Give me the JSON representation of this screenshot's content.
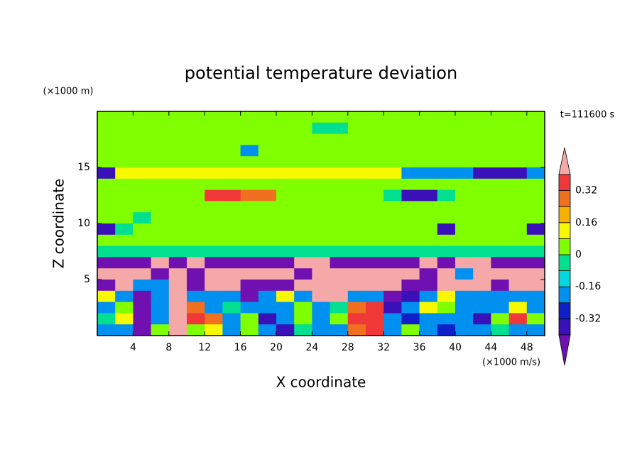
{
  "chart_data": {
    "type": "contour",
    "title": "potential temperature deviation",
    "xlabel": "X coordinate",
    "ylabel": "Z coordinate",
    "x_unit": "(×1000 m/s)",
    "y_unit": "(×1000 m)",
    "time_label": "t=111600 s",
    "xlim": [
      0,
      50
    ],
    "ylim": [
      0,
      20
    ],
    "xticks": [
      4,
      8,
      12,
      16,
      20,
      24,
      28,
      32,
      36,
      40,
      44,
      48
    ],
    "yticks": [
      5,
      10,
      15
    ],
    "levels": [
      -0.4,
      -0.32,
      -0.24,
      -0.16,
      -0.08,
      0,
      0.08,
      0.16,
      0.24,
      0.32,
      0.4
    ],
    "colors": [
      "#7010b0",
      "#3a10b8",
      "#1020c8",
      "#0090f0",
      "#00d8e0",
      "#00e090",
      "#80ff00",
      "#f8f800",
      "#f8b000",
      "#f07020",
      "#f03838",
      "#f4a8a8"
    ],
    "colorbar_ticks": [
      -0.32,
      -0.16,
      0,
      0.16,
      0.32
    ],
    "x": [
      1,
      3,
      5,
      7,
      9,
      11,
      13,
      15,
      17,
      19,
      21,
      23,
      25,
      27,
      29,
      31,
      33,
      35,
      37,
      39,
      41,
      43,
      45,
      47,
      49
    ],
    "y": [
      19.5,
      18.5,
      17.5,
      16.5,
      15.5,
      14.5,
      13.5,
      12.5,
      11.5,
      10.5,
      9.5,
      8.5,
      7.5,
      6.5,
      5.5,
      4.5,
      3.5,
      2.5,
      1.5,
      0.5
    ],
    "z": [
      [
        0.04,
        0.04,
        0.04,
        0.04,
        0.04,
        0.04,
        0.04,
        0.04,
        0.04,
        0.04,
        0.04,
        0.04,
        0.04,
        0.04,
        0.04,
        0.04,
        0.04,
        0.04,
        0.04,
        0.04,
        0.04,
        0.04,
        0.04,
        0.04,
        0.04
      ],
      [
        0.04,
        0.04,
        0.04,
        0.04,
        0.04,
        0.04,
        0.04,
        0.04,
        0.04,
        0.04,
        0.04,
        0.04,
        -0.04,
        -0.04,
        0.04,
        0.04,
        0.04,
        0.04,
        0.04,
        0.04,
        0.04,
        0.04,
        0.04,
        0.04,
        0.04
      ],
      [
        0.04,
        0.04,
        0.04,
        0.04,
        0.04,
        0.04,
        0.04,
        0.04,
        0.04,
        0.04,
        0.04,
        0.04,
        0.04,
        0.04,
        0.04,
        0.04,
        0.04,
        0.04,
        0.04,
        0.04,
        0.04,
        0.04,
        0.04,
        0.04,
        0.04
      ],
      [
        0.04,
        0.04,
        0.04,
        0.04,
        0.04,
        0.04,
        0.04,
        0.04,
        -0.2,
        0.04,
        0.04,
        0.04,
        0.04,
        0.04,
        0.04,
        0.04,
        0.04,
        0.04,
        0.04,
        0.04,
        0.04,
        0.04,
        0.04,
        0.04,
        0.04
      ],
      [
        0.04,
        0.04,
        0.04,
        0.04,
        0.04,
        0.04,
        0.04,
        0.04,
        0.04,
        0.04,
        0.04,
        0.04,
        0.04,
        0.04,
        0.04,
        0.04,
        0.04,
        0.04,
        0.04,
        0.04,
        0.04,
        0.04,
        0.04,
        0.04,
        0.04
      ],
      [
        -0.36,
        0.12,
        0.12,
        0.12,
        0.12,
        0.12,
        0.12,
        0.12,
        0.12,
        0.12,
        0.12,
        0.12,
        0.12,
        0.12,
        0.12,
        0.12,
        0.12,
        -0.2,
        -0.2,
        -0.2,
        -0.2,
        -0.36,
        -0.36,
        -0.36,
        -0.2
      ],
      [
        0.04,
        0.04,
        0.04,
        0.04,
        0.04,
        0.04,
        0.04,
        0.04,
        0.04,
        0.04,
        0.04,
        0.04,
        0.04,
        0.04,
        0.04,
        0.04,
        0.04,
        0.04,
        0.04,
        0.04,
        0.04,
        0.04,
        0.04,
        0.04,
        0.04
      ],
      [
        0.04,
        0.04,
        0.04,
        0.04,
        0.04,
        0.04,
        0.36,
        0.36,
        0.28,
        0.28,
        0.04,
        0.04,
        0.04,
        0.04,
        0.04,
        0.04,
        -0.04,
        -0.36,
        -0.36,
        -0.04,
        0.04,
        0.04,
        0.04,
        0.04,
        0.04
      ],
      [
        0.04,
        0.04,
        0.04,
        0.04,
        0.04,
        0.04,
        0.04,
        0.04,
        0.04,
        0.04,
        0.04,
        0.04,
        0.04,
        0.04,
        0.04,
        0.04,
        0.04,
        0.04,
        0.04,
        0.04,
        0.04,
        0.04,
        0.04,
        0.04,
        0.04
      ],
      [
        0.04,
        0.04,
        -0.04,
        0.04,
        0.04,
        0.04,
        0.04,
        0.04,
        0.04,
        0.04,
        0.04,
        0.04,
        0.04,
        0.04,
        0.04,
        0.04,
        0.04,
        0.04,
        0.04,
        0.04,
        0.04,
        0.04,
        0.04,
        0.04,
        0.04
      ],
      [
        -0.36,
        -0.04,
        0.04,
        0.04,
        0.04,
        0.04,
        0.04,
        0.04,
        0.04,
        0.04,
        0.04,
        0.04,
        0.04,
        0.04,
        0.04,
        0.04,
        0.04,
        0.04,
        0.04,
        -0.36,
        0.04,
        0.04,
        0.04,
        0.04,
        -0.36
      ],
      [
        0.04,
        0.04,
        0.04,
        0.04,
        0.04,
        0.04,
        0.04,
        0.04,
        0.04,
        0.04,
        0.04,
        0.04,
        0.04,
        0.04,
        0.04,
        0.04,
        0.04,
        0.04,
        0.04,
        0.04,
        0.04,
        0.04,
        0.04,
        0.04,
        0.04
      ],
      [
        -0.04,
        -0.04,
        -0.04,
        -0.04,
        -0.04,
        -0.04,
        -0.04,
        -0.04,
        -0.04,
        -0.04,
        -0.04,
        -0.04,
        -0.04,
        -0.04,
        -0.04,
        -0.04,
        -0.04,
        -0.04,
        -0.04,
        -0.04,
        -0.04,
        -0.04,
        -0.04,
        -0.04,
        -0.04
      ],
      [
        -0.5,
        -0.5,
        -0.5,
        0.5,
        -0.5,
        0.5,
        -0.5,
        -0.5,
        -0.5,
        -0.5,
        -0.5,
        0.5,
        0.5,
        -0.5,
        -0.5,
        -0.5,
        -0.5,
        -0.5,
        0.5,
        -0.5,
        0.5,
        0.5,
        -0.5,
        -0.5,
        -0.5
      ],
      [
        0.5,
        0.5,
        0.5,
        -0.5,
        0.5,
        -0.5,
        0.5,
        0.5,
        0.5,
        0.5,
        0.5,
        -0.5,
        0.5,
        0.5,
        0.5,
        0.5,
        0.5,
        0.5,
        -0.5,
        0.5,
        -0.2,
        0.5,
        0.5,
        0.5,
        0.5
      ],
      [
        -0.5,
        0.5,
        -0.2,
        -0.2,
        0.5,
        -0.5,
        0.5,
        0.5,
        -0.5,
        -0.5,
        -0.5,
        0.5,
        0.5,
        0.5,
        0.5,
        0.5,
        0.5,
        -0.5,
        -0.5,
        0.5,
        0.5,
        0.5,
        -0.5,
        0.5,
        0.5
      ],
      [
        0.12,
        -0.2,
        -0.5,
        -0.2,
        0.5,
        -0.2,
        -0.2,
        -0.2,
        -0.5,
        -0.2,
        0.12,
        -0.2,
        0.5,
        0.5,
        -0.2,
        -0.2,
        -0.5,
        -0.36,
        -0.2,
        0.12,
        -0.2,
        -0.2,
        -0.2,
        -0.2,
        -0.2
      ],
      [
        -0.2,
        0.04,
        -0.5,
        -0.2,
        0.5,
        0.28,
        -0.2,
        -0.04,
        -0.2,
        -0.2,
        -0.2,
        0.04,
        -0.2,
        -0.04,
        0.28,
        0.36,
        -0.36,
        -0.2,
        0.12,
        0.04,
        -0.2,
        -0.2,
        -0.2,
        0.12,
        -0.2
      ],
      [
        -0.04,
        0.12,
        -0.5,
        -0.2,
        0.5,
        0.36,
        0.28,
        -0.2,
        0.04,
        -0.36,
        -0.2,
        0.04,
        -0.2,
        0.04,
        0.36,
        0.36,
        -0.2,
        -0.28,
        -0.2,
        -0.2,
        -0.2,
        -0.36,
        0.04,
        0.36,
        0.04
      ],
      [
        -0.2,
        -0.2,
        -0.5,
        0.04,
        0.5,
        0.04,
        0.12,
        -0.2,
        0.04,
        -0.2,
        -0.36,
        -0.04,
        -0.2,
        -0.2,
        0.28,
        0.36,
        -0.2,
        0.04,
        -0.2,
        -0.28,
        -0.2,
        -0.2,
        -0.04,
        -0.2,
        -0.2
      ]
    ]
  }
}
